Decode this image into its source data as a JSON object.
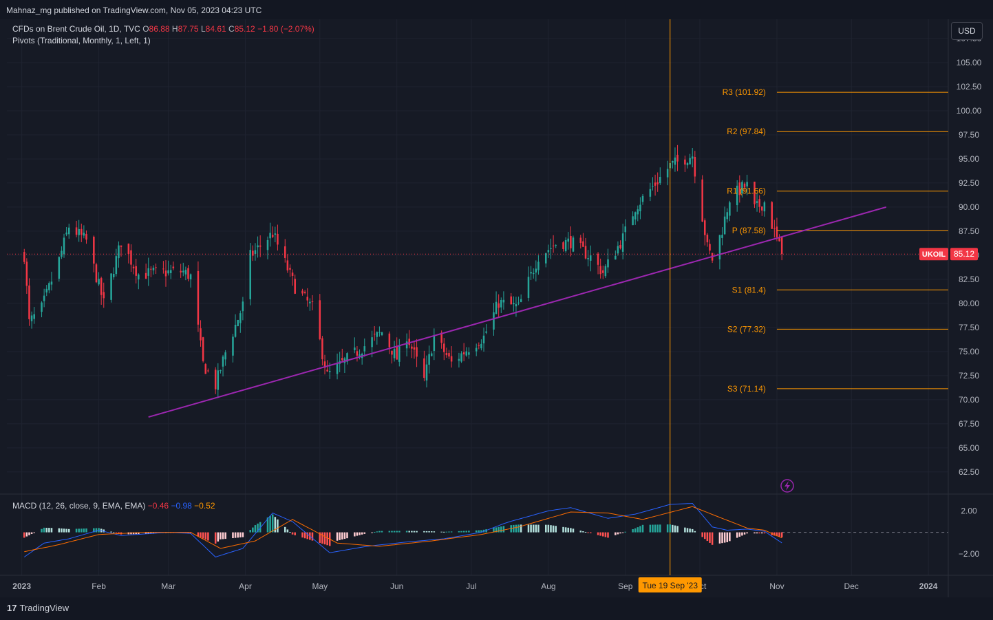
{
  "header": {
    "published": "Mahnaz_mg published on TradingView.com, Nov 05, 2023 04:23 UTC"
  },
  "legend": {
    "symbol": "CFDs on Brent Crude Oil, 1D, TVC",
    "o_label": "O",
    "o_value": "86.88",
    "h_label": "H",
    "h_value": "87.75",
    "l_label": "L",
    "l_value": "84.61",
    "c_label": "C",
    "c_value": "85.12",
    "change": "−1.80 (−2.07%)",
    "pivots": "Pivots (Traditional, Monthly, 1, Left, 1)"
  },
  "macd_legend": {
    "label": "MACD (12, 26, close, 9, EMA, EMA)",
    "hist": "−0.46",
    "macd": "−0.98",
    "signal": "−0.52"
  },
  "currency_button": "USD",
  "footer": {
    "logo_mark": "17",
    "logo_text": "TradingView"
  },
  "colors": {
    "up": "#26a69a",
    "down": "#f23645",
    "pivot": "#ff9800",
    "trendline": "#9c27b0",
    "crosshair": "#ff9800",
    "macd_line": "#2962ff",
    "signal_line": "#ff6d00"
  },
  "chart_data": {
    "type": "candlestick",
    "symbol": "UKOIL",
    "last_price": "85.12",
    "y_ticks": [
      "107.50",
      "105.00",
      "102.50",
      "100.00",
      "97.50",
      "95.00",
      "92.50",
      "90.00",
      "87.50",
      "85.00",
      "82.50",
      "80.00",
      "77.50",
      "75.00",
      "72.50",
      "70.00",
      "67.50",
      "65.00",
      "62.50"
    ],
    "ylim": [
      60.2,
      109.5
    ],
    "x_ticks": [
      "2023",
      "Feb",
      "Mar",
      "Apr",
      "May",
      "Jun",
      "Jul",
      "Aug",
      "Sep",
      "Oct",
      "Nov",
      "Dec",
      "2024"
    ],
    "x_tick_dates": [
      "2023-01-01",
      "2023-02-01",
      "2023-03-01",
      "2023-04-01",
      "2023-05-01",
      "2023-06-01",
      "2023-07-01",
      "2023-08-01",
      "2023-09-01",
      "2023-10-01",
      "2023-11-01",
      "2023-12-01",
      "2024-01-01"
    ],
    "crosshair_date": "2023-09-19",
    "crosshair_label": "Tue 19 Sep '23",
    "pivot_levels": [
      {
        "label": "R3 (101.92)",
        "value": 101.92
      },
      {
        "label": "R2 (97.84)",
        "value": 97.84
      },
      {
        "label": "R1 (91.66)",
        "value": 91.66
      },
      {
        "label": "P (87.58)",
        "value": 87.58
      },
      {
        "label": "S1 (81.4)",
        "value": 81.4
      },
      {
        "label": "S2 (77.32)",
        "value": 77.32
      },
      {
        "label": "S3 (71.14)",
        "value": 71.14
      }
    ],
    "pivot_period": {
      "start": "2023-11-01",
      "end": "2023-12-31"
    },
    "trendline": {
      "start": {
        "date": "2023-02-21",
        "value": 68.2
      },
      "end": {
        "date": "2023-12-15",
        "value": 90.0
      }
    },
    "close_keypoints": [
      {
        "date": "2023-01-02",
        "value": 85.0
      },
      {
        "date": "2023-01-04",
        "value": 78.0
      },
      {
        "date": "2023-01-09",
        "value": 79.5
      },
      {
        "date": "2023-01-16",
        "value": 84.5
      },
      {
        "date": "2023-01-20",
        "value": 88.0
      },
      {
        "date": "2023-01-27",
        "value": 86.5
      },
      {
        "date": "2023-02-03",
        "value": 80.0
      },
      {
        "date": "2023-02-10",
        "value": 86.4
      },
      {
        "date": "2023-02-17",
        "value": 83.0
      },
      {
        "date": "2023-02-24",
        "value": 83.2
      },
      {
        "date": "2023-03-07",
        "value": 83.3
      },
      {
        "date": "2023-03-10",
        "value": 82.8
      },
      {
        "date": "2023-03-15",
        "value": 73.7
      },
      {
        "date": "2023-03-20",
        "value": 71.5
      },
      {
        "date": "2023-03-24",
        "value": 74.9
      },
      {
        "date": "2023-03-31",
        "value": 79.8
      },
      {
        "date": "2023-04-03",
        "value": 84.9
      },
      {
        "date": "2023-04-12",
        "value": 87.3
      },
      {
        "date": "2023-04-21",
        "value": 81.7
      },
      {
        "date": "2023-04-28",
        "value": 79.5
      },
      {
        "date": "2023-05-04",
        "value": 72.5
      },
      {
        "date": "2023-05-12",
        "value": 74.2
      },
      {
        "date": "2023-05-19",
        "value": 75.6
      },
      {
        "date": "2023-05-26",
        "value": 77.0
      },
      {
        "date": "2023-06-01",
        "value": 74.3
      },
      {
        "date": "2023-06-05",
        "value": 76.7
      },
      {
        "date": "2023-06-12",
        "value": 72.0
      },
      {
        "date": "2023-06-16",
        "value": 76.6
      },
      {
        "date": "2023-06-23",
        "value": 73.8
      },
      {
        "date": "2023-06-30",
        "value": 75.4
      },
      {
        "date": "2023-07-06",
        "value": 76.5
      },
      {
        "date": "2023-07-12",
        "value": 80.1
      },
      {
        "date": "2023-07-20",
        "value": 79.6
      },
      {
        "date": "2023-07-28",
        "value": 84.9
      },
      {
        "date": "2023-08-04",
        "value": 86.2
      },
      {
        "date": "2023-08-10",
        "value": 86.4
      },
      {
        "date": "2023-08-18",
        "value": 84.8
      },
      {
        "date": "2023-08-23",
        "value": 83.2
      },
      {
        "date": "2023-08-31",
        "value": 86.8
      },
      {
        "date": "2023-09-05",
        "value": 90.0
      },
      {
        "date": "2023-09-12",
        "value": 92.1
      },
      {
        "date": "2023-09-19",
        "value": 94.3
      },
      {
        "date": "2023-09-28",
        "value": 95.4
      },
      {
        "date": "2023-10-04",
        "value": 85.8
      },
      {
        "date": "2023-10-06",
        "value": 84.6
      },
      {
        "date": "2023-10-10",
        "value": 87.7
      },
      {
        "date": "2023-10-13",
        "value": 90.9
      },
      {
        "date": "2023-10-18",
        "value": 92.0
      },
      {
        "date": "2023-10-20",
        "value": 92.2
      },
      {
        "date": "2023-10-23",
        "value": 89.8
      },
      {
        "date": "2023-10-27",
        "value": 90.5
      },
      {
        "date": "2023-10-31",
        "value": 87.4
      },
      {
        "date": "2023-11-03",
        "value": 85.12
      }
    ],
    "macd": {
      "y_ticks": [
        "2.00",
        "−2.00"
      ],
      "ylim": [
        -4.0,
        3.5
      ],
      "macd_keypoints": [
        {
          "date": "2023-01-02",
          "value": -2.3
        },
        {
          "date": "2023-01-10",
          "value": -1.0
        },
        {
          "date": "2023-01-20",
          "value": -0.6
        },
        {
          "date": "2023-02-01",
          "value": 0.2
        },
        {
          "date": "2023-02-10",
          "value": -0.3
        },
        {
          "date": "2023-03-01",
          "value": 0.0
        },
        {
          "date": "2023-03-10",
          "value": -0.1
        },
        {
          "date": "2023-03-20",
          "value": -2.3
        },
        {
          "date": "2023-03-31",
          "value": -1.5
        },
        {
          "date": "2023-04-12",
          "value": 1.8
        },
        {
          "date": "2023-04-20",
          "value": 1.0
        },
        {
          "date": "2023-05-05",
          "value": -1.9
        },
        {
          "date": "2023-05-20",
          "value": -1.3
        },
        {
          "date": "2023-06-05",
          "value": -0.9
        },
        {
          "date": "2023-06-20",
          "value": -0.6
        },
        {
          "date": "2023-07-05",
          "value": 0.0
        },
        {
          "date": "2023-07-15",
          "value": 0.9
        },
        {
          "date": "2023-08-01",
          "value": 2.0
        },
        {
          "date": "2023-08-10",
          "value": 2.3
        },
        {
          "date": "2023-08-25",
          "value": 1.3
        },
        {
          "date": "2023-09-05",
          "value": 1.7
        },
        {
          "date": "2023-09-19",
          "value": 2.6
        },
        {
          "date": "2023-09-28",
          "value": 2.7
        },
        {
          "date": "2023-10-06",
          "value": 0.5
        },
        {
          "date": "2023-10-12",
          "value": 0.2
        },
        {
          "date": "2023-10-20",
          "value": 0.3
        },
        {
          "date": "2023-10-27",
          "value": 0.1
        },
        {
          "date": "2023-11-03",
          "value": -0.98
        }
      ],
      "signal_keypoints": [
        {
          "date": "2023-01-02",
          "value": -1.8
        },
        {
          "date": "2023-01-15",
          "value": -1.2
        },
        {
          "date": "2023-02-01",
          "value": -0.2
        },
        {
          "date": "2023-02-20",
          "value": 0.0
        },
        {
          "date": "2023-03-10",
          "value": 0.0
        },
        {
          "date": "2023-03-22",
          "value": -1.5
        },
        {
          "date": "2023-04-05",
          "value": -0.8
        },
        {
          "date": "2023-04-20",
          "value": 1.2
        },
        {
          "date": "2023-05-08",
          "value": -1.0
        },
        {
          "date": "2023-05-25",
          "value": -1.3
        },
        {
          "date": "2023-06-15",
          "value": -0.8
        },
        {
          "date": "2023-07-05",
          "value": -0.2
        },
        {
          "date": "2023-07-20",
          "value": 0.5
        },
        {
          "date": "2023-08-10",
          "value": 1.9
        },
        {
          "date": "2023-08-25",
          "value": 1.8
        },
        {
          "date": "2023-09-08",
          "value": 1.2
        },
        {
          "date": "2023-09-28",
          "value": 2.4
        },
        {
          "date": "2023-10-10",
          "value": 1.3
        },
        {
          "date": "2023-10-20",
          "value": 0.4
        },
        {
          "date": "2023-10-27",
          "value": 0.2
        },
        {
          "date": "2023-11-03",
          "value": -0.52
        }
      ]
    }
  }
}
